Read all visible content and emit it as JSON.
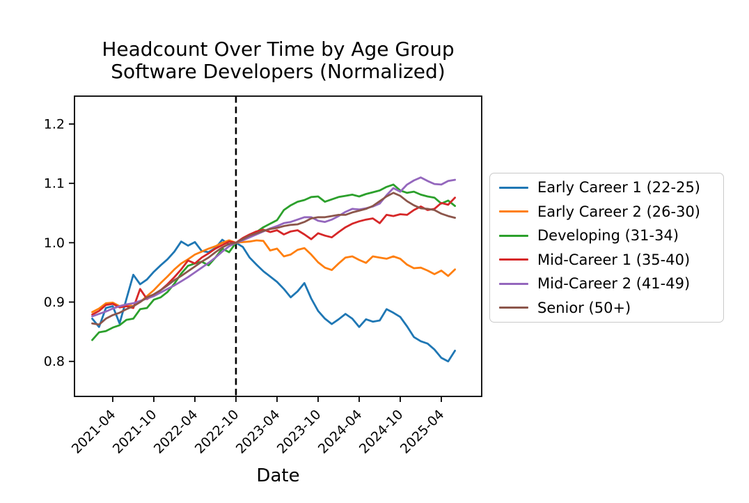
{
  "figure": {
    "title_line1": "Headcount Over Time by Age Group",
    "title_line2": "Software Developers (Normalized)",
    "xlabel": "Date",
    "background_color": "#ffffff",
    "axes_color": "#000000"
  },
  "chart_data": {
    "type": "line",
    "title": "Headcount Over Time by Age Group — Software Developers (Normalized)",
    "xlabel": "Date",
    "ylabel": "",
    "grid": false,
    "legend_position": "right-of-plot",
    "x": [
      "2021-01",
      "2021-02",
      "2021-03",
      "2021-04",
      "2021-05",
      "2021-06",
      "2021-07",
      "2021-08",
      "2021-09",
      "2021-10",
      "2021-11",
      "2021-12",
      "2022-01",
      "2022-02",
      "2022-03",
      "2022-04",
      "2022-05",
      "2022-06",
      "2022-07",
      "2022-08",
      "2022-09",
      "2022-10",
      "2022-11",
      "2022-12",
      "2023-01",
      "2023-02",
      "2023-03",
      "2023-04",
      "2023-05",
      "2023-06",
      "2023-07",
      "2023-08",
      "2023-09",
      "2023-10",
      "2023-11",
      "2023-12",
      "2024-01",
      "2024-02",
      "2024-03",
      "2024-04",
      "2024-05",
      "2024-06",
      "2024-07",
      "2024-08",
      "2024-09",
      "2024-10",
      "2024-11",
      "2024-12",
      "2025-01",
      "2025-02",
      "2025-03",
      "2025-04",
      "2025-05",
      "2025-06"
    ],
    "series": [
      {
        "name": "Early Career 1 (22-25)",
        "color": "#1f77b4",
        "values": [
          0.872,
          0.858,
          0.89,
          0.893,
          0.864,
          0.905,
          0.946,
          0.93,
          0.938,
          0.951,
          0.962,
          0.972,
          0.985,
          1.002,
          0.995,
          1.001,
          0.986,
          0.984,
          0.991,
          1.005,
          0.997,
          1.0,
          0.993,
          0.975,
          0.963,
          0.952,
          0.943,
          0.934,
          0.922,
          0.908,
          0.918,
          0.932,
          0.906,
          0.885,
          0.872,
          0.863,
          0.871,
          0.88,
          0.872,
          0.858,
          0.871,
          0.867,
          0.869,
          0.888,
          0.882,
          0.875,
          0.859,
          0.841,
          0.834,
          0.83,
          0.82,
          0.806,
          0.8,
          0.818
        ]
      },
      {
        "name": "Early Career 2 (26-30)",
        "color": "#ff7f0e",
        "values": [
          0.883,
          0.889,
          0.898,
          0.899,
          0.893,
          0.896,
          0.893,
          0.9,
          0.91,
          0.92,
          0.932,
          0.943,
          0.955,
          0.965,
          0.972,
          0.98,
          0.985,
          0.99,
          0.994,
          1.0,
          1.004,
          1.0,
          1.001,
          1.002,
          1.004,
          1.003,
          0.987,
          0.99,
          0.977,
          0.98,
          0.988,
          0.991,
          0.98,
          0.967,
          0.958,
          0.954,
          0.965,
          0.975,
          0.977,
          0.971,
          0.966,
          0.977,
          0.975,
          0.973,
          0.977,
          0.973,
          0.963,
          0.957,
          0.958,
          0.953,
          0.947,
          0.953,
          0.944,
          0.955
        ]
      },
      {
        "name": "Developing (31-34)",
        "color": "#2ca02c",
        "values": [
          0.836,
          0.849,
          0.851,
          0.857,
          0.861,
          0.87,
          0.872,
          0.888,
          0.89,
          0.904,
          0.908,
          0.917,
          0.931,
          0.948,
          0.961,
          0.965,
          0.968,
          0.962,
          0.975,
          0.99,
          0.984,
          1.0,
          1.005,
          1.012,
          1.018,
          1.026,
          1.032,
          1.038,
          1.055,
          1.063,
          1.069,
          1.072,
          1.077,
          1.078,
          1.069,
          1.073,
          1.077,
          1.079,
          1.081,
          1.078,
          1.082,
          1.085,
          1.088,
          1.094,
          1.098,
          1.088,
          1.084,
          1.086,
          1.081,
          1.078,
          1.076,
          1.066,
          1.071,
          1.062
        ]
      },
      {
        "name": "Mid-Career 1 (35-40)",
        "color": "#d62728",
        "values": [
          0.879,
          0.885,
          0.895,
          0.897,
          0.891,
          0.893,
          0.89,
          0.922,
          0.905,
          0.912,
          0.92,
          0.93,
          0.942,
          0.955,
          0.97,
          0.965,
          0.975,
          0.982,
          0.99,
          0.996,
          1.002,
          1.0,
          1.008,
          1.014,
          1.019,
          1.022,
          1.018,
          1.021,
          1.014,
          1.019,
          1.021,
          1.014,
          1.006,
          1.016,
          1.012,
          1.009,
          1.018,
          1.026,
          1.032,
          1.036,
          1.039,
          1.041,
          1.033,
          1.047,
          1.045,
          1.048,
          1.047,
          1.055,
          1.061,
          1.055,
          1.057,
          1.067,
          1.064,
          1.076
        ]
      },
      {
        "name": "Mid-Career 2 (41-49)",
        "color": "#9467bd",
        "values": [
          0.876,
          0.88,
          0.884,
          0.889,
          0.893,
          0.896,
          0.898,
          0.902,
          0.906,
          0.91,
          0.916,
          0.922,
          0.928,
          0.935,
          0.942,
          0.95,
          0.958,
          0.966,
          0.975,
          0.985,
          0.994,
          1.0,
          1.004,
          1.009,
          1.014,
          1.019,
          1.024,
          1.028,
          1.033,
          1.035,
          1.039,
          1.043,
          1.043,
          1.037,
          1.035,
          1.039,
          1.045,
          1.052,
          1.057,
          1.056,
          1.058,
          1.061,
          1.066,
          1.08,
          1.092,
          1.086,
          1.098,
          1.105,
          1.11,
          1.104,
          1.099,
          1.098,
          1.104,
          1.106
        ]
      },
      {
        "name": "Senior (50+)",
        "color": "#8c564b",
        "values": [
          0.864,
          0.862,
          0.872,
          0.878,
          0.882,
          0.888,
          0.893,
          0.9,
          0.908,
          0.913,
          0.92,
          0.928,
          0.937,
          0.944,
          0.952,
          0.96,
          0.968,
          0.975,
          0.984,
          0.992,
          0.998,
          1.0,
          1.006,
          1.012,
          1.016,
          1.02,
          1.023,
          1.025,
          1.028,
          1.03,
          1.031,
          1.035,
          1.041,
          1.043,
          1.043,
          1.045,
          1.047,
          1.047,
          1.051,
          1.054,
          1.057,
          1.062,
          1.07,
          1.078,
          1.084,
          1.079,
          1.07,
          1.063,
          1.058,
          1.057,
          1.055,
          1.049,
          1.045,
          1.042
        ]
      }
    ],
    "xticks": [
      "2021-04",
      "2021-10",
      "2022-04",
      "2022-10",
      "2023-04",
      "2023-10",
      "2024-04",
      "2024-10",
      "2025-04"
    ],
    "yticks": [
      "0.8",
      "0.9",
      "1.0",
      "1.1",
      "1.2"
    ],
    "ylim": [
      0.741,
      1.247
    ],
    "xlim_months_from_first": [
      -2.59,
      56.9
    ],
    "annotation_vline": {
      "date": "2022-10",
      "style": "dashed",
      "color": "#000000"
    }
  }
}
